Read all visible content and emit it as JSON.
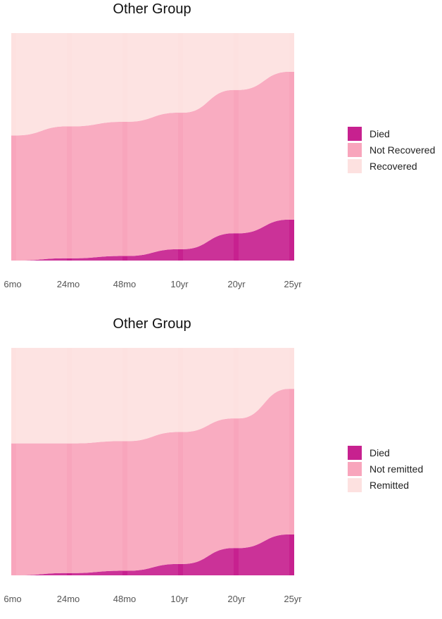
{
  "chart_data": [
    {
      "type": "alluvial",
      "title": "Other Group",
      "xlabel": "",
      "ylabel": "",
      "categories": [
        "6mo",
        "24mo",
        "48mo",
        "10yr",
        "20yr",
        "25yr"
      ],
      "series": [
        {
          "name": "Died",
          "color": "#C7218F",
          "values": [
            0,
            1,
            2,
            5,
            12,
            18
          ]
        },
        {
          "name": "Not Recovered",
          "color": "#F8A5BC",
          "values": [
            55,
            58,
            59,
            60,
            63,
            65
          ]
        },
        {
          "name": "Recovered",
          "color": "#FDE1E0",
          "values": [
            45,
            41,
            39,
            35,
            25,
            17
          ]
        }
      ],
      "legend": {
        "position": "right",
        "entries": [
          "Died",
          "Not Recovered",
          "Recovered"
        ]
      },
      "grid": false
    },
    {
      "type": "alluvial",
      "title": "Other Group",
      "xlabel": "",
      "ylabel": "",
      "categories": [
        "6mo",
        "24mo",
        "48mo",
        "10yr",
        "20yr",
        "25yr"
      ],
      "series": [
        {
          "name": "Died",
          "color": "#C7218F",
          "values": [
            0,
            1,
            2,
            5,
            12,
            18
          ]
        },
        {
          "name": "Not remitted",
          "color": "#F8A5BC",
          "values": [
            58,
            57,
            57,
            58,
            57,
            64
          ]
        },
        {
          "name": "Remitted",
          "color": "#FDE1E0",
          "values": [
            42,
            42,
            41,
            37,
            31,
            18
          ]
        }
      ],
      "legend": {
        "position": "right",
        "entries": [
          "Died",
          "Not remitted",
          "Remitted"
        ]
      },
      "grid": false
    }
  ]
}
